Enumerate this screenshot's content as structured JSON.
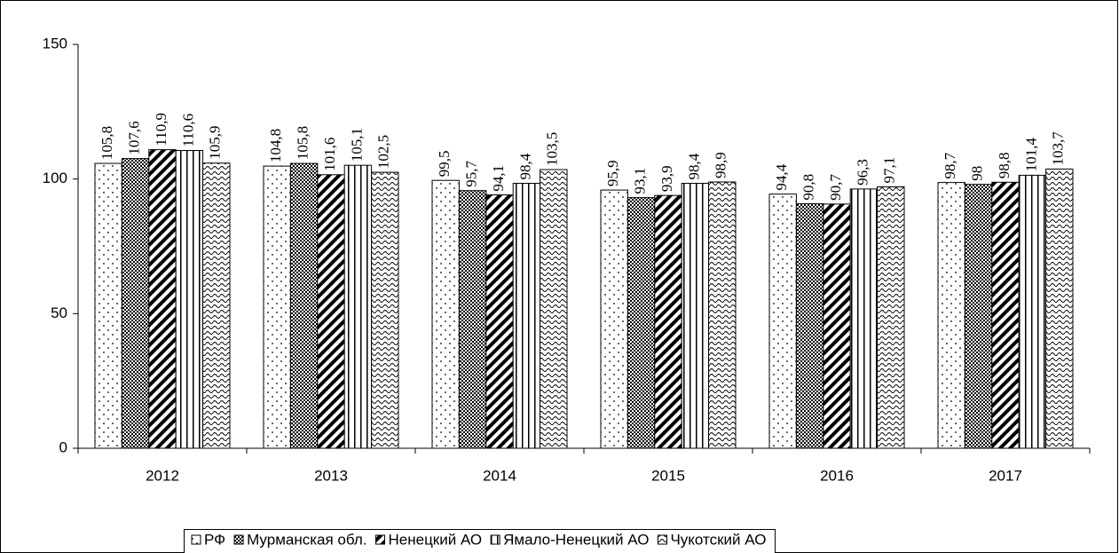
{
  "chart_data": {
    "type": "bar",
    "categories": [
      "2012",
      "2013",
      "2014",
      "2015",
      "2016",
      "2017"
    ],
    "ylim": [
      0,
      150
    ],
    "yticks": [
      0,
      50,
      100,
      150
    ],
    "series": [
      {
        "name": "РФ",
        "color": "#000000",
        "pattern": "dots",
        "values": [
          105.8,
          104.8,
          99.5,
          95.9,
          94.4,
          98.7
        ],
        "value_labels": [
          "105,8",
          "104,8",
          "99,5",
          "95,9",
          "94,4",
          "98,7"
        ]
      },
      {
        "name": "Мурманская обл.",
        "color": "#000000",
        "pattern": "checker",
        "values": [
          107.6,
          105.8,
          95.7,
          93.1,
          90.8,
          98
        ],
        "value_labels": [
          "107,6",
          "105,8",
          "95,7",
          "93,1",
          "90,8",
          "98"
        ]
      },
      {
        "name": "Ненецкий АО",
        "color": "#000000",
        "pattern": "diagonal",
        "values": [
          110.9,
          101.6,
          94.1,
          93.9,
          90.7,
          98.8
        ],
        "value_labels": [
          "110,9",
          "101,6",
          "94,1",
          "93,9",
          "90,7",
          "98,8"
        ]
      },
      {
        "name": "Ямало-Ненецкий АО",
        "color": "#000000",
        "pattern": "vertical",
        "values": [
          110.6,
          105.1,
          98.4,
          98.4,
          96.3,
          101.4
        ],
        "value_labels": [
          "110,6",
          "105,1",
          "98,4",
          "98,4",
          "96,3",
          "101,4"
        ]
      },
      {
        "name": "Чукотский АО",
        "color": "#000000",
        "pattern": "wave",
        "values": [
          105.9,
          102.5,
          103.5,
          98.9,
          97.1,
          103.7
        ],
        "value_labels": [
          "105,9",
          "102,5",
          "103,5",
          "98,9",
          "97,1",
          "103,7"
        ]
      }
    ]
  }
}
